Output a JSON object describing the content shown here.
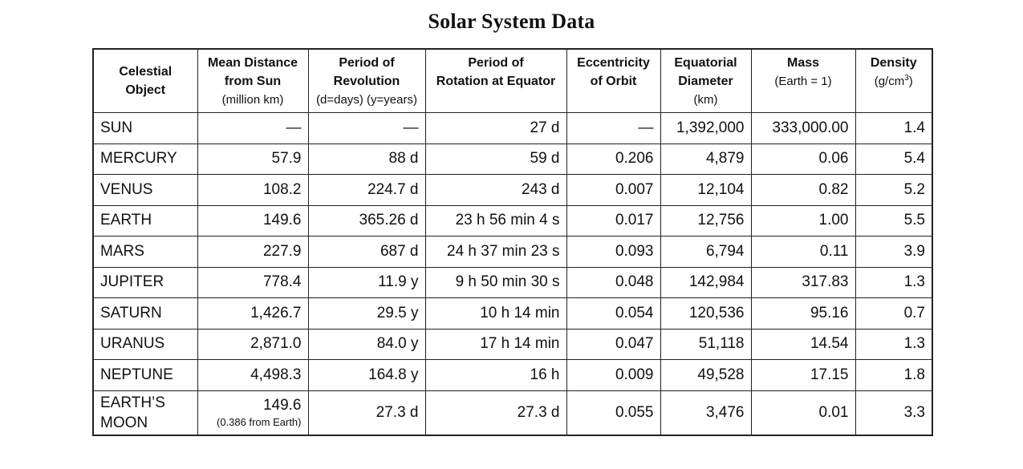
{
  "title": "Solar System Data",
  "headers": [
    {
      "lines": [
        "Celestial",
        "Object"
      ],
      "sub": []
    },
    {
      "lines": [
        "Mean Distance",
        "from Sun"
      ],
      "sub": [
        "(million km)"
      ]
    },
    {
      "lines": [
        "Period of",
        "Revolution"
      ],
      "sub": [
        "(d=days)  (y=years)"
      ]
    },
    {
      "lines": [
        "Period of",
        "Rotation at Equator"
      ],
      "sub": []
    },
    {
      "lines": [
        "Eccentricity",
        "of Orbit"
      ],
      "sub": []
    },
    {
      "lines": [
        "Equatorial",
        "Diameter"
      ],
      "sub": [
        "(km)"
      ]
    },
    {
      "lines": [
        "Mass"
      ],
      "sub": [
        "(Earth = 1)"
      ]
    },
    {
      "lines": [
        "Density"
      ],
      "sub": [
        "(g/cm",
        "3",
        ")"
      ]
    }
  ],
  "rows": [
    [
      "SUN",
      "—",
      "—",
      "27 d",
      "—",
      "1,392,000",
      "333,000.00",
      "1.4"
    ],
    [
      "MERCURY",
      "57.9",
      "88 d",
      "59 d",
      "0.206",
      "4,879",
      "0.06",
      "5.4"
    ],
    [
      "VENUS",
      "108.2",
      "224.7 d",
      "243 d",
      "0.007",
      "12,104",
      "0.82",
      "5.2"
    ],
    [
      "EARTH",
      "149.6",
      "365.26 d",
      "23 h 56 min 4 s",
      "0.017",
      "12,756",
      "1.00",
      "5.5"
    ],
    [
      "MARS",
      "227.9",
      "687 d",
      "24 h 37 min 23 s",
      "0.093",
      "6,794",
      "0.11",
      "3.9"
    ],
    [
      "JUPITER",
      "778.4",
      "11.9 y",
      "9 h 50 min 30 s",
      "0.048",
      "142,984",
      "317.83",
      "1.3"
    ],
    [
      "SATURN",
      "1,426.7",
      "29.5 y",
      "10 h 14 min",
      "0.054",
      "120,536",
      "95.16",
      "0.7"
    ],
    [
      "URANUS",
      "2,871.0",
      "84.0 y",
      "17 h 14 min",
      "0.047",
      "51,118",
      "14.54",
      "1.3"
    ],
    [
      "NEPTUNE",
      "4,498.3",
      "164.8 y",
      "16 h",
      "0.009",
      "49,528",
      "17.15",
      "1.8"
    ]
  ],
  "moon_row": {
    "name_line1": "EARTH’S",
    "name_line2": "MOON",
    "distance": "149.6",
    "distance_note": "(0.386 from Earth)",
    "cells": [
      "27.3 d",
      "27.3 d",
      "0.055",
      "3,476",
      "0.01",
      "3.3"
    ]
  }
}
